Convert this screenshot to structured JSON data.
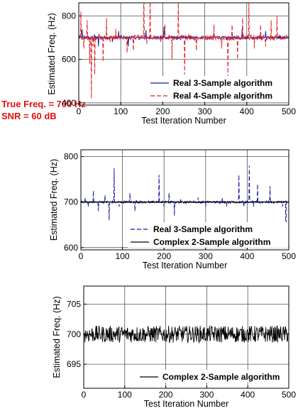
{
  "annotations": [
    "True Freq. = 700 Hz",
    "SNR = 60 dB"
  ],
  "annotation_color": "#e01010",
  "chart_data": [
    {
      "type": "line",
      "xlabel": "Test Iteration Number",
      "ylabel": "Estimated Freq. (Hz)",
      "xlim": [
        0,
        500
      ],
      "ylim": [
        390,
        860
      ],
      "xticks": [
        "0",
        "100",
        "200",
        "300",
        "400",
        "500"
      ],
      "yticks": [
        "400",
        "600",
        "800"
      ],
      "grid": true,
      "legend_position": "bottom-right",
      "series": [
        {
          "name": "Real 3-Sample algorithm",
          "color": "#1a1aa8",
          "style": "solid",
          "x": [
            0,
            8,
            25,
            37,
            47,
            63,
            80,
            95,
            108,
            118,
            132,
            150,
            160,
            172,
            190,
            203,
            218,
            233,
            250,
            265,
            280,
            300,
            320,
            337,
            352,
            370,
            389,
            405,
            420,
            445,
            465,
            480,
            500
          ],
          "y": [
            700,
            740,
            690,
            715,
            660,
            700,
            680,
            730,
            700,
            660,
            700,
            700,
            735,
            700,
            700,
            750,
            700,
            690,
            700,
            710,
            700,
            700,
            710,
            700,
            690,
            700,
            740,
            700,
            700,
            730,
            690,
            710,
            700
          ]
        },
        {
          "name": "Real 4-Sample algorithm",
          "color": "#e02020",
          "style": "dashed",
          "x": [
            0,
            5,
            12,
            20,
            26,
            30,
            34,
            38,
            48,
            58,
            66,
            75,
            88,
            100,
            115,
            130,
            145,
            155,
            162,
            170,
            185,
            195,
            205,
            212,
            222,
            237,
            252,
            262,
            280,
            300,
            322,
            340,
            355,
            365,
            378,
            390,
            405,
            418,
            433,
            445,
            458,
            472,
            485,
            500
          ],
          "y": [
            700,
            820,
            650,
            780,
            580,
            420,
            660,
            530,
            720,
            590,
            790,
            680,
            740,
            700,
            630,
            640,
            700,
            910,
            670,
            880,
            700,
            680,
            760,
            700,
            600,
            860,
            530,
            720,
            640,
            700,
            760,
            650,
            520,
            760,
            600,
            790,
            860,
            650,
            760,
            660,
            780,
            800,
            690,
            700
          ]
        }
      ]
    },
    {
      "type": "line",
      "xlabel": "Test Iteration Number",
      "ylabel": "Estimated Freq. (Hz)",
      "xlim": [
        0,
        500
      ],
      "ylim": [
        595,
        815
      ],
      "xticks": [
        "0",
        "100",
        "200",
        "300",
        "400",
        "500"
      ],
      "yticks": [
        "600",
        "700",
        "800"
      ],
      "grid": true,
      "legend_position": "bottom-right",
      "series": [
        {
          "name": "Real 3-Sample algorithm",
          "color": "#1a1aa8",
          "style": "dashed",
          "x": [
            0,
            10,
            18,
            30,
            42,
            58,
            68,
            80,
            92,
            105,
            118,
            130,
            145,
            160,
            172,
            188,
            200,
            212,
            225,
            240,
            260,
            282,
            300,
            320,
            340,
            350,
            365,
            380,
            392,
            400,
            405,
            415,
            425,
            442,
            455,
            470,
            485,
            493,
            500
          ],
          "y": [
            700,
            710,
            690,
            725,
            680,
            715,
            660,
            775,
            690,
            700,
            720,
            680,
            700,
            700,
            705,
            760,
            690,
            720,
            670,
            705,
            700,
            710,
            690,
            700,
            710,
            690,
            700,
            760,
            690,
            705,
            780,
            690,
            740,
            700,
            735,
            700,
            690,
            625,
            700
          ]
        },
        {
          "name": "Complex 2-Sample algorithm",
          "color": "#000000",
          "style": "solid",
          "x": [
            0,
            50,
            100,
            150,
            200,
            250,
            300,
            350,
            400,
            450,
            500
          ],
          "y": [
            700,
            701,
            699,
            700,
            701,
            699,
            700,
            700,
            701,
            699,
            700
          ]
        }
      ]
    },
    {
      "type": "line",
      "xlabel": "Test Iteration Number",
      "ylabel": "Estimated Freq. (Hz)",
      "xlim": [
        0,
        500
      ],
      "ylim": [
        691,
        708
      ],
      "xticks": [
        "0",
        "100",
        "200",
        "300",
        "400",
        "500"
      ],
      "yticks": [
        "695",
        "700",
        "705"
      ],
      "grid": true,
      "legend_position": "bottom-right",
      "series": [
        {
          "name": "Complex 2-Sample algorithm",
          "color": "#000000",
          "style": "solid",
          "x": [
            0,
            50,
            100,
            150,
            200,
            250,
            300,
            350,
            400,
            450,
            500
          ],
          "y": [
            700,
            699.5,
            700.5,
            700,
            699.5,
            700.5,
            700,
            699.5,
            700.5,
            700,
            700
          ],
          "noise_band": [
            698.2,
            701.8
          ]
        }
      ]
    }
  ]
}
